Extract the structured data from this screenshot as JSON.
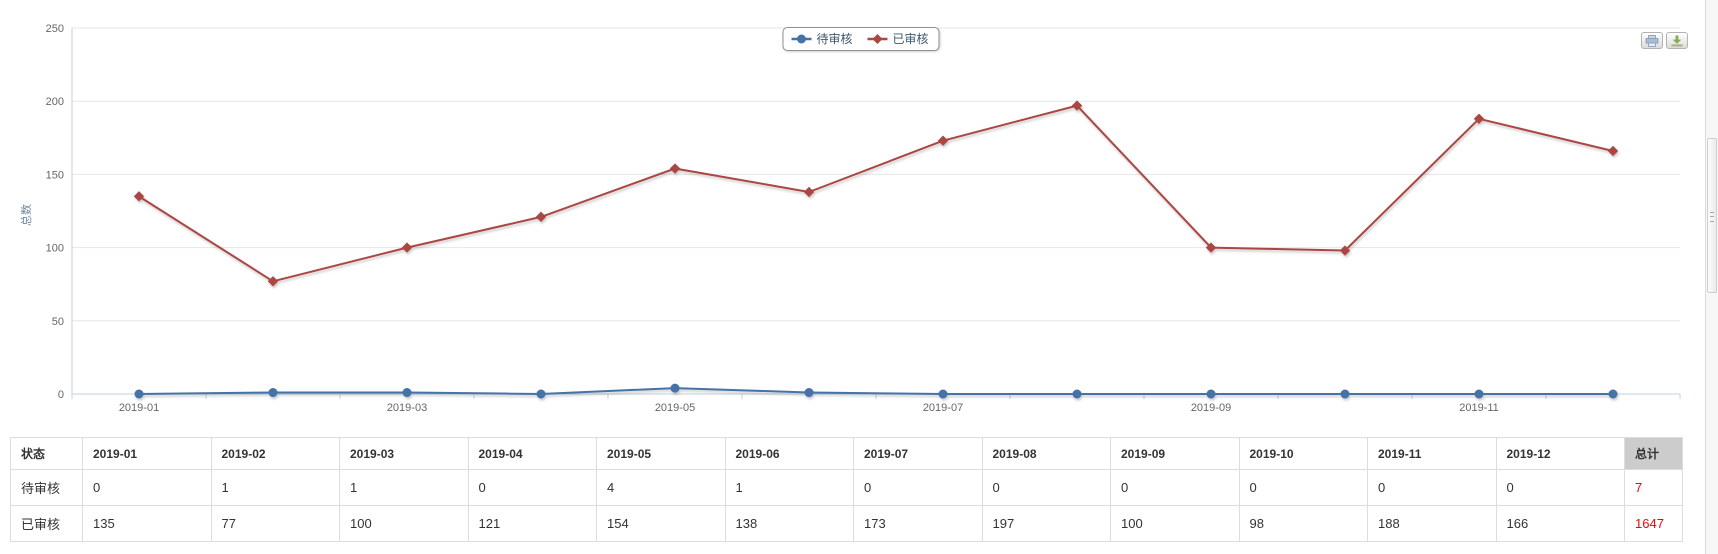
{
  "chart_data": {
    "type": "line",
    "title": "",
    "xlabel": "",
    "ylabel": "总数",
    "ylim": [
      0,
      250
    ],
    "y_ticks": [
      0,
      50,
      100,
      150,
      200,
      250
    ],
    "grid": true,
    "legend_position": "top-center",
    "x_label_interval": 2,
    "categories": [
      "2019-01",
      "2019-02",
      "2019-03",
      "2019-04",
      "2019-05",
      "2019-06",
      "2019-07",
      "2019-08",
      "2019-09",
      "2019-10",
      "2019-11",
      "2019-12"
    ],
    "series": [
      {
        "name": "待审核",
        "color": "#4572A7",
        "marker": "circle",
        "values": [
          0,
          1,
          1,
          0,
          4,
          1,
          0,
          0,
          0,
          0,
          0,
          0
        ]
      },
      {
        "name": "已审核",
        "color": "#AA4643",
        "marker": "diamond",
        "values": [
          135,
          77,
          100,
          121,
          154,
          138,
          173,
          197,
          100,
          98,
          188,
          166
        ]
      }
    ],
    "colors": {
      "grid_line": "#e6e6e6",
      "axis_line": "#c0d0e0",
      "tick_label": "#666666",
      "axis_title": "#6D869F",
      "legend_text": "#3E576F"
    }
  },
  "toolbar": {
    "print_icon": "print-icon",
    "download_icon": "download-icon"
  },
  "table": {
    "status_header": "状态",
    "total_header": "总计",
    "columns": [
      "2019-01",
      "2019-02",
      "2019-03",
      "2019-04",
      "2019-05",
      "2019-06",
      "2019-07",
      "2019-08",
      "2019-09",
      "2019-10",
      "2019-11",
      "2019-12"
    ],
    "rows": [
      {
        "label": "待审核",
        "values": [
          "0",
          "1",
          "1",
          "0",
          "4",
          "1",
          "0",
          "0",
          "0",
          "0",
          "0",
          "0"
        ],
        "total": "7"
      },
      {
        "label": "已审核",
        "values": [
          "135",
          "77",
          "100",
          "121",
          "154",
          "138",
          "173",
          "197",
          "100",
          "98",
          "188",
          "166"
        ],
        "total": "1647"
      }
    ],
    "total_color": "#ff0000"
  }
}
